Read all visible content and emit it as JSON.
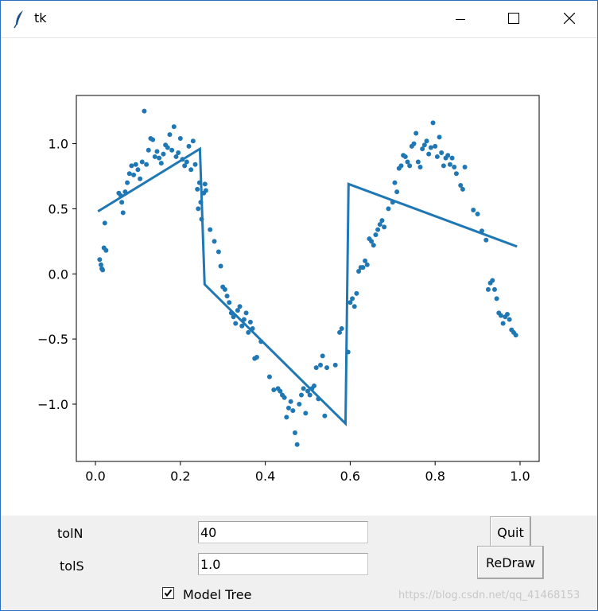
{
  "window": {
    "title": "tk"
  },
  "controls": {
    "tolN_label": "tolN",
    "tolN_value": "40",
    "tolS_label": "tolS",
    "tolS_value": "1.0",
    "model_tree_label": "Model Tree",
    "model_tree_checked": true,
    "quit_label": "Quit",
    "redraw_label": "ReDraw"
  },
  "watermark": "https://blog.csdn.net/qq_41468153",
  "colors": {
    "series": "#1f77b4",
    "controls_bg": "#f0f0f0",
    "window_border": "#2b6fc2"
  },
  "chart_data": {
    "type": "scatter",
    "xlim": [
      -0.045,
      1.045
    ],
    "ylim": [
      -1.44,
      1.37
    ],
    "x_ticks": [
      0.0,
      0.2,
      0.4,
      0.6,
      0.8,
      1.0
    ],
    "x_tick_labels": [
      "0.0",
      "0.2",
      "0.4",
      "0.6",
      "0.8",
      "1.0"
    ],
    "y_ticks": [
      -1.0,
      -0.5,
      0.0,
      0.5,
      1.0
    ],
    "y_tick_labels": [
      "−1.0",
      "−0.5",
      "0.0",
      "0.5",
      "1.0"
    ],
    "title": "",
    "xlabel": "",
    "ylabel": "",
    "series": [
      {
        "kind": "points",
        "points": [
          [
            0.01,
            0.11
          ],
          [
            0.013,
            0.07
          ],
          [
            0.015,
            0.04
          ],
          [
            0.017,
            0.03
          ],
          [
            0.02,
            0.2
          ],
          [
            0.022,
            0.39
          ],
          [
            0.025,
            0.18
          ],
          [
            0.055,
            0.62
          ],
          [
            0.06,
            0.6
          ],
          [
            0.062,
            0.55
          ],
          [
            0.065,
            0.47
          ],
          [
            0.07,
            0.63
          ],
          [
            0.075,
            0.7
          ],
          [
            0.08,
            0.77
          ],
          [
            0.085,
            0.83
          ],
          [
            0.09,
            0.76
          ],
          [
            0.095,
            0.84
          ],
          [
            0.1,
            0.8
          ],
          [
            0.105,
            0.73
          ],
          [
            0.11,
            0.86
          ],
          [
            0.115,
            1.25
          ],
          [
            0.12,
            0.84
          ],
          [
            0.125,
            0.95
          ],
          [
            0.13,
            1.04
          ],
          [
            0.135,
            1.03
          ],
          [
            0.14,
            0.9
          ],
          [
            0.145,
            0.94
          ],
          [
            0.15,
            0.89
          ],
          [
            0.155,
            0.85
          ],
          [
            0.16,
            0.92
          ],
          [
            0.165,
            0.99
          ],
          [
            0.17,
            0.97
          ],
          [
            0.175,
            1.07
          ],
          [
            0.18,
            0.95
          ],
          [
            0.185,
            1.13
          ],
          [
            0.19,
            0.9
          ],
          [
            0.195,
            0.93
          ],
          [
            0.2,
            1.04
          ],
          [
            0.205,
            0.88
          ],
          [
            0.21,
            0.83
          ],
          [
            0.215,
            0.86
          ],
          [
            0.22,
            0.98
          ],
          [
            0.225,
            0.8
          ],
          [
            0.23,
            1.02
          ],
          [
            0.235,
            0.84
          ],
          [
            0.24,
            0.65
          ],
          [
            0.242,
            0.5
          ],
          [
            0.245,
            0.7
          ],
          [
            0.248,
            0.55
          ],
          [
            0.25,
            0.42
          ],
          [
            0.255,
            0.62
          ],
          [
            0.258,
            0.69
          ],
          [
            0.26,
            0.64
          ],
          [
            0.27,
            0.34
          ],
          [
            0.28,
            0.25
          ],
          [
            0.29,
            0.17
          ],
          [
            0.295,
            0.06
          ],
          [
            0.3,
            -0.1
          ],
          [
            0.305,
            -0.12
          ],
          [
            0.31,
            -0.17
          ],
          [
            0.315,
            -0.22
          ],
          [
            0.32,
            -0.3
          ],
          [
            0.325,
            -0.33
          ],
          [
            0.33,
            -0.38
          ],
          [
            0.335,
            -0.28
          ],
          [
            0.34,
            -0.25
          ],
          [
            0.345,
            -0.4
          ],
          [
            0.35,
            -0.35
          ],
          [
            0.355,
            -0.3
          ],
          [
            0.36,
            -0.45
          ],
          [
            0.365,
            -0.37
          ],
          [
            0.37,
            -0.42
          ],
          [
            0.375,
            -0.65
          ],
          [
            0.38,
            -0.64
          ],
          [
            0.39,
            -0.52
          ],
          [
            0.41,
            -0.79
          ],
          [
            0.42,
            -0.89
          ],
          [
            0.43,
            -0.88
          ],
          [
            0.435,
            -0.9
          ],
          [
            0.44,
            -0.93
          ],
          [
            0.445,
            -0.95
          ],
          [
            0.45,
            -1.1
          ],
          [
            0.455,
            -1.03
          ],
          [
            0.46,
            -0.98
          ],
          [
            0.465,
            -1.05
          ],
          [
            0.47,
            -1.22
          ],
          [
            0.475,
            -1.31
          ],
          [
            0.48,
            -1.0
          ],
          [
            0.485,
            -0.93
          ],
          [
            0.49,
            -0.88
          ],
          [
            0.495,
            -1.07
          ],
          [
            0.5,
            -0.9
          ],
          [
            0.505,
            -0.93
          ],
          [
            0.51,
            -0.88
          ],
          [
            0.515,
            -0.86
          ],
          [
            0.52,
            -0.72
          ],
          [
            0.525,
            -0.96
          ],
          [
            0.53,
            -0.7
          ],
          [
            0.535,
            -0.63
          ],
          [
            0.54,
            -1.09
          ],
          [
            0.545,
            -0.72
          ],
          [
            0.565,
            -0.7
          ],
          [
            0.575,
            -0.45
          ],
          [
            0.58,
            -0.42
          ],
          [
            0.595,
            -0.6
          ],
          [
            0.6,
            -0.22
          ],
          [
            0.605,
            -0.19
          ],
          [
            0.61,
            -0.25
          ],
          [
            0.615,
            -0.15
          ],
          [
            0.62,
            0.02
          ],
          [
            0.625,
            0.05
          ],
          [
            0.63,
            0.05
          ],
          [
            0.635,
            0.1
          ],
          [
            0.64,
            0.07
          ],
          [
            0.645,
            0.27
          ],
          [
            0.65,
            0.25
          ],
          [
            0.655,
            0.22
          ],
          [
            0.66,
            0.3
          ],
          [
            0.665,
            0.34
          ],
          [
            0.67,
            0.38
          ],
          [
            0.675,
            0.41
          ],
          [
            0.68,
            0.36
          ],
          [
            0.69,
            0.5
          ],
          [
            0.7,
            0.55
          ],
          [
            0.705,
            0.7
          ],
          [
            0.71,
            0.63
          ],
          [
            0.715,
            0.81
          ],
          [
            0.72,
            0.83
          ],
          [
            0.725,
            0.91
          ],
          [
            0.73,
            0.9
          ],
          [
            0.735,
            0.86
          ],
          [
            0.74,
            0.83
          ],
          [
            0.745,
            0.98
          ],
          [
            0.75,
            1.0
          ],
          [
            0.755,
            1.08
          ],
          [
            0.76,
            0.86
          ],
          [
            0.765,
            0.82
          ],
          [
            0.77,
            0.96
          ],
          [
            0.775,
            0.99
          ],
          [
            0.78,
            1.02
          ],
          [
            0.785,
            0.92
          ],
          [
            0.79,
            0.97
          ],
          [
            0.795,
            1.16
          ],
          [
            0.8,
            0.98
          ],
          [
            0.805,
            0.9
          ],
          [
            0.81,
            1.05
          ],
          [
            0.815,
            0.93
          ],
          [
            0.82,
            0.83
          ],
          [
            0.825,
            0.89
          ],
          [
            0.83,
            0.91
          ],
          [
            0.835,
            0.84
          ],
          [
            0.84,
            0.89
          ],
          [
            0.845,
            0.82
          ],
          [
            0.85,
            0.77
          ],
          [
            0.86,
            0.68
          ],
          [
            0.865,
            0.65
          ],
          [
            0.87,
            0.82
          ],
          [
            0.89,
            0.49
          ],
          [
            0.9,
            0.46
          ],
          [
            0.91,
            0.33
          ],
          [
            0.92,
            0.26
          ],
          [
            0.925,
            -0.12
          ],
          [
            0.93,
            -0.07
          ],
          [
            0.935,
            -0.05
          ],
          [
            0.94,
            -0.12
          ],
          [
            0.945,
            -0.19
          ],
          [
            0.95,
            -0.3
          ],
          [
            0.955,
            -0.32
          ],
          [
            0.96,
            -0.38
          ],
          [
            0.965,
            -0.33
          ],
          [
            0.97,
            -0.31
          ],
          [
            0.975,
            -0.35
          ],
          [
            0.98,
            -0.43
          ],
          [
            0.985,
            -0.45
          ],
          [
            0.99,
            -0.47
          ]
        ]
      },
      {
        "kind": "line",
        "points": [
          [
            0.006,
            0.48
          ],
          [
            0.246,
            0.96
          ],
          [
            0.257,
            -0.08
          ],
          [
            0.589,
            -1.15
          ],
          [
            0.596,
            0.69
          ],
          [
            0.993,
            0.21
          ]
        ]
      }
    ]
  }
}
